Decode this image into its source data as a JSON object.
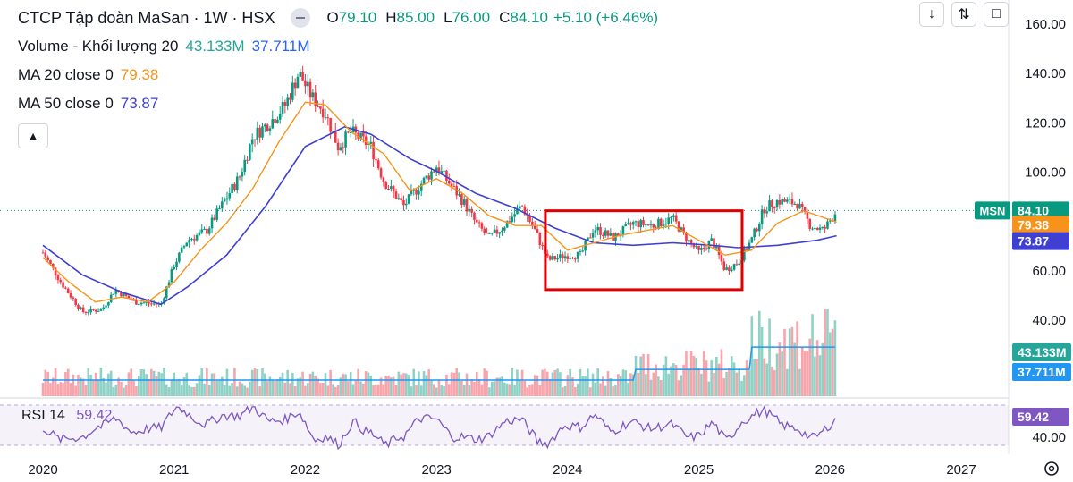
{
  "header": {
    "title": "CTCP Tập đoàn MaSan · 1W · HSX",
    "ohlc": [
      {
        "key": "O",
        "value": "79.10"
      },
      {
        "key": "H",
        "value": "85.00"
      },
      {
        "key": "L",
        "value": "76.00"
      },
      {
        "key": "C",
        "value": "84.10"
      }
    ],
    "change": "+5.10 (+6.46%)",
    "volume_label": "Volume - Khối lượng 20",
    "volume_value": "43.133M",
    "volume_ma_value": "37.711M",
    "ma20_label": "MA 20 close 0",
    "ma20_value": "79.38",
    "ma50_label": "MA 50 close 0",
    "ma50_value": "73.87",
    "collapse_icon": "chevron-up-icon"
  },
  "toolbar": {
    "icons": [
      "arrow-down-icon",
      "collapse-arrows-icon",
      "maximize-icon"
    ]
  },
  "rsi": {
    "label": "RSI 14",
    "value": "59.42",
    "axis_label": "40.00"
  },
  "colors": {
    "up": "#089981",
    "down": "#f23645",
    "ma20": "#f7931a",
    "ma50": "#3f3fd1",
    "rsi": "#7e57c2",
    "volume_ma": "#2196f3",
    "highlight_box": "#e00000"
  },
  "chart_data": {
    "type": "candlestick",
    "symbol": "MSN",
    "interval": "1W",
    "y_ticks": [
      "160.00",
      "140.00",
      "120.00",
      "100.00",
      "80.00",
      "60.00",
      "40.00"
    ],
    "ylim": [
      40,
      160
    ],
    "x_ticks": [
      "2020",
      "2021",
      "2022",
      "2023",
      "2024",
      "2025",
      "2026",
      "2027"
    ],
    "xlim": [
      2020.0,
      2027.0
    ],
    "last_price_label": "MSN",
    "last_price": "84.10",
    "price_axis_badges": [
      {
        "value": "84.10",
        "color": "#089981"
      },
      {
        "value": "79.38",
        "color": "#f7931a"
      },
      {
        "value": "73.87",
        "color": "#3f3fd1"
      }
    ],
    "volume_badges": [
      {
        "value": "43.133M",
        "color": "#26a69a"
      },
      {
        "value": "37.711M",
        "color": "#2196f3"
      }
    ],
    "rsi_badge": {
      "value": "59.42",
      "color": "#7e57c2"
    },
    "close_path": [
      [
        2020.0,
        67
      ],
      [
        2020.15,
        54
      ],
      [
        2020.3,
        43
      ],
      [
        2020.45,
        44
      ],
      [
        2020.55,
        52
      ],
      [
        2020.7,
        47
      ],
      [
        2020.9,
        46
      ],
      [
        2021.0,
        62
      ],
      [
        2021.1,
        72
      ],
      [
        2021.25,
        76
      ],
      [
        2021.35,
        85
      ],
      [
        2021.5,
        98
      ],
      [
        2021.6,
        114
      ],
      [
        2021.75,
        121
      ],
      [
        2021.85,
        127
      ],
      [
        2021.95,
        140
      ],
      [
        2022.05,
        130
      ],
      [
        2022.15,
        124
      ],
      [
        2022.25,
        110
      ],
      [
        2022.35,
        116
      ],
      [
        2022.5,
        110
      ],
      [
        2022.6,
        96
      ],
      [
        2022.75,
        86
      ],
      [
        2022.9,
        96
      ],
      [
        2023.0,
        102
      ],
      [
        2023.1,
        95
      ],
      [
        2023.2,
        88
      ],
      [
        2023.3,
        79
      ],
      [
        2023.4,
        73
      ],
      [
        2023.5,
        77
      ],
      [
        2023.65,
        86
      ],
      [
        2023.75,
        76
      ],
      [
        2023.85,
        64
      ],
      [
        2024.0,
        66
      ],
      [
        2024.1,
        66
      ],
      [
        2024.2,
        77
      ],
      [
        2024.35,
        73
      ],
      [
        2024.5,
        79
      ],
      [
        2024.65,
        78
      ],
      [
        2024.8,
        81
      ],
      [
        2024.9,
        73
      ],
      [
        2025.0,
        67
      ],
      [
        2025.1,
        72
      ],
      [
        2025.2,
        60
      ],
      [
        2025.3,
        63
      ],
      [
        2025.4,
        72
      ],
      [
        2025.5,
        85
      ],
      [
        2025.6,
        88
      ],
      [
        2025.75,
        87
      ],
      [
        2025.85,
        78
      ],
      [
        2025.95,
        76
      ],
      [
        2026.05,
        84.1
      ]
    ],
    "ma20_path": [
      [
        2020.0,
        65
      ],
      [
        2020.2,
        55
      ],
      [
        2020.4,
        47
      ],
      [
        2020.6,
        49
      ],
      [
        2020.8,
        47
      ],
      [
        2021.0,
        55
      ],
      [
        2021.2,
        68
      ],
      [
        2021.4,
        79
      ],
      [
        2021.6,
        93
      ],
      [
        2021.8,
        112
      ],
      [
        2022.0,
        128
      ],
      [
        2022.15,
        127
      ],
      [
        2022.35,
        116
      ],
      [
        2022.6,
        107
      ],
      [
        2022.8,
        92
      ],
      [
        2023.0,
        97
      ],
      [
        2023.2,
        91
      ],
      [
        2023.4,
        82
      ],
      [
        2023.6,
        78
      ],
      [
        2023.8,
        78
      ],
      [
        2024.0,
        68
      ],
      [
        2024.2,
        71
      ],
      [
        2024.4,
        74
      ],
      [
        2024.6,
        76
      ],
      [
        2024.8,
        78
      ],
      [
        2025.0,
        72
      ],
      [
        2025.2,
        66
      ],
      [
        2025.4,
        68
      ],
      [
        2025.6,
        79
      ],
      [
        2025.8,
        84
      ],
      [
        2026.05,
        79.38
      ]
    ],
    "ma50_path": [
      [
        2020.0,
        70
      ],
      [
        2020.3,
        58
      ],
      [
        2020.6,
        51
      ],
      [
        2020.9,
        46
      ],
      [
        2021.1,
        53
      ],
      [
        2021.4,
        66
      ],
      [
        2021.7,
        86
      ],
      [
        2022.0,
        110
      ],
      [
        2022.3,
        118
      ],
      [
        2022.5,
        115
      ],
      [
        2022.8,
        105
      ],
      [
        2023.0,
        100
      ],
      [
        2023.3,
        91
      ],
      [
        2023.6,
        85
      ],
      [
        2023.9,
        77
      ],
      [
        2024.2,
        71
      ],
      [
        2024.5,
        70
      ],
      [
        2024.8,
        71
      ],
      [
        2025.1,
        70
      ],
      [
        2025.3,
        69
      ],
      [
        2025.6,
        70
      ],
      [
        2025.9,
        72
      ],
      [
        2026.05,
        73.87
      ]
    ],
    "annotation_box": {
      "x_from": 2023.83,
      "x_to": 2025.33,
      "y_from": 52,
      "y_to": 84
    }
  }
}
